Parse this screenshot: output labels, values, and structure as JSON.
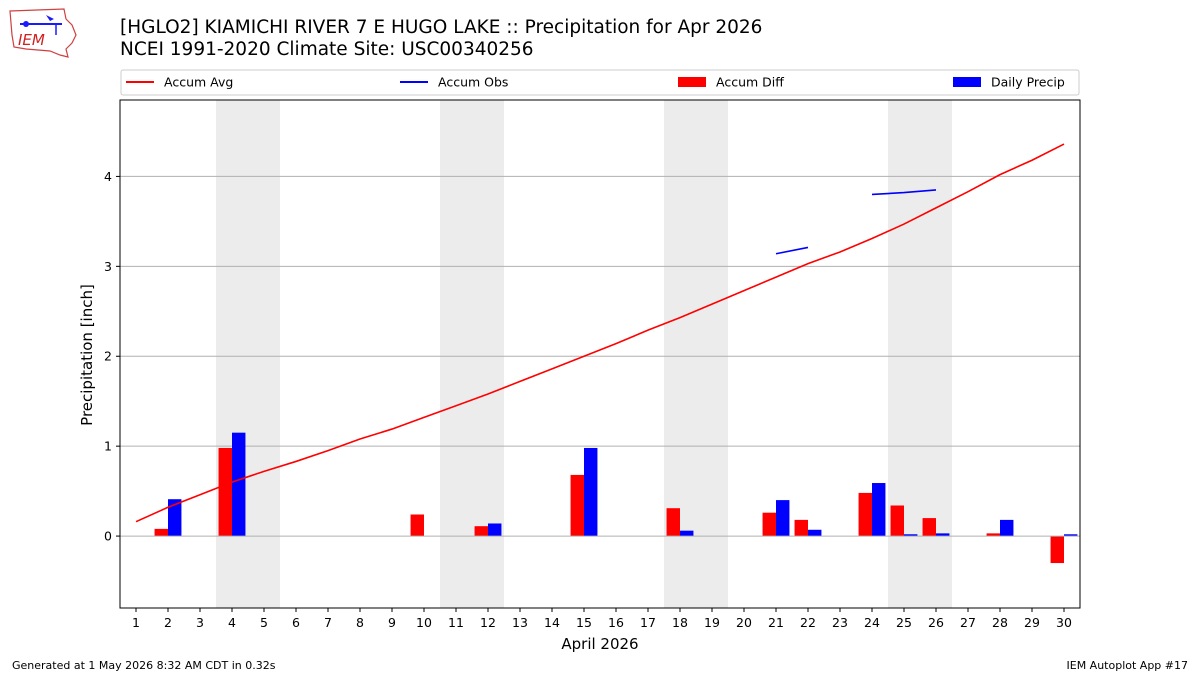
{
  "title": "[HGLO2] KIAMICHI RIVER 7 E HUGO LAKE :: Precipitation for Apr 2026",
  "subtitle": "NCEI 1991-2020 Climate Site: USC00340256",
  "logo_text": "IEM",
  "footer_left": "Generated at 1 May 2026 8:32 AM CDT in 0.32s",
  "footer_right": "IEM Autoplot App #17",
  "colors": {
    "avg": "#ff0000",
    "obs": "#0000ff",
    "diff": "#ff0000",
    "daily": "#0000ff",
    "weekend": "#ececec",
    "grid": "#b0b0b0"
  },
  "chart_data": {
    "type": "bar",
    "xlabel": "April 2026",
    "ylabel": "Precipitation [inch]",
    "xlim": [
      0.5,
      30.5
    ],
    "ylim": [
      -0.8,
      4.85
    ],
    "yticks": [
      0,
      1,
      2,
      3,
      4
    ],
    "days": [
      1,
      2,
      3,
      4,
      5,
      6,
      7,
      8,
      9,
      10,
      11,
      12,
      13,
      14,
      15,
      16,
      17,
      18,
      19,
      20,
      21,
      22,
      23,
      24,
      25,
      26,
      27,
      28,
      29,
      30
    ],
    "weekend_days": [
      4,
      5,
      11,
      12,
      18,
      19,
      25,
      26
    ],
    "grid": "y",
    "legend_position": "top",
    "series": [
      {
        "name": "Accum Avg",
        "kind": "line",
        "values": [
          0.16,
          0.32,
          0.46,
          0.6,
          0.72,
          0.83,
          0.95,
          1.08,
          1.19,
          1.32,
          1.45,
          1.58,
          1.72,
          1.86,
          2.0,
          2.14,
          2.29,
          2.43,
          2.58,
          2.73,
          2.88,
          3.03,
          3.16,
          3.31,
          3.47,
          3.65,
          3.83,
          4.02,
          4.18,
          4.36
        ]
      },
      {
        "name": "Accum Obs",
        "kind": "line",
        "values": [
          null,
          null,
          null,
          null,
          null,
          null,
          null,
          null,
          null,
          null,
          null,
          null,
          null,
          null,
          null,
          null,
          null,
          null,
          null,
          null,
          3.14,
          3.21,
          null,
          3.8,
          3.82,
          3.85,
          null,
          null,
          null,
          null
        ]
      },
      {
        "name": "Accum Diff",
        "kind": "bar",
        "values": [
          null,
          0.08,
          null,
          0.98,
          null,
          null,
          null,
          null,
          null,
          0.24,
          null,
          0.11,
          null,
          null,
          0.68,
          null,
          null,
          0.31,
          null,
          null,
          0.26,
          0.18,
          null,
          0.48,
          0.34,
          0.2,
          null,
          0.03,
          null,
          -0.3
        ]
      },
      {
        "name": "Daily Precip",
        "kind": "bar",
        "values": [
          null,
          0.41,
          null,
          1.15,
          null,
          null,
          null,
          null,
          null,
          null,
          null,
          0.14,
          null,
          null,
          0.98,
          null,
          null,
          0.06,
          null,
          null,
          0.4,
          0.07,
          null,
          0.59,
          0.02,
          0.03,
          null,
          0.18,
          null,
          0.02
        ]
      }
    ]
  }
}
